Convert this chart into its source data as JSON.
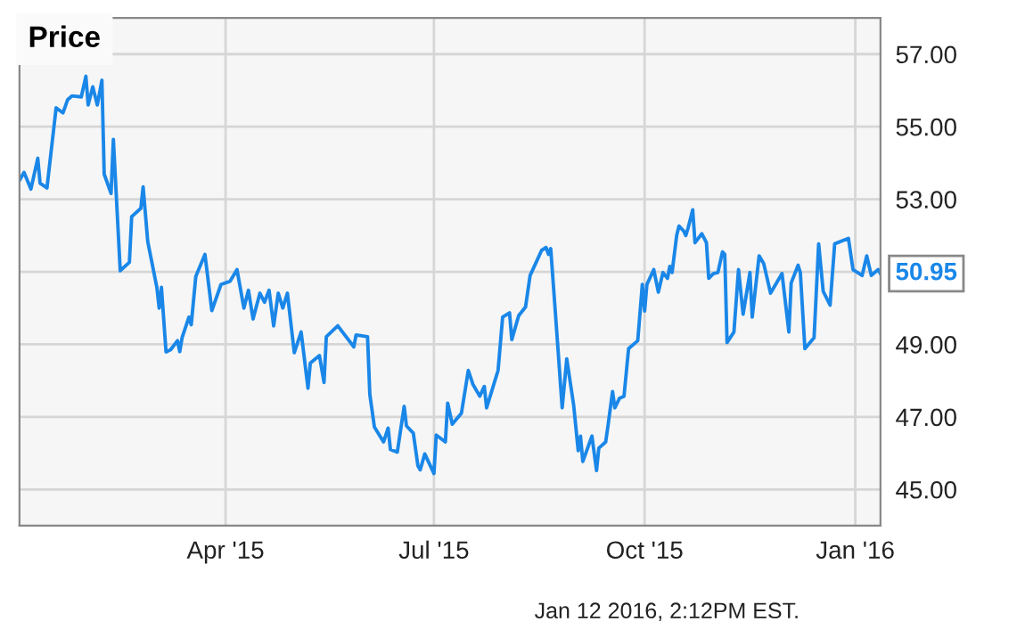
{
  "chart_data": {
    "type": "line",
    "title": "Price",
    "x": [
      "2015-01-01",
      "2015-01-03",
      "2015-01-06",
      "2015-01-09",
      "2015-01-10",
      "2015-01-13",
      "2015-01-17",
      "2015-01-20",
      "2015-01-22",
      "2015-01-24",
      "2015-01-28",
      "2015-01-30",
      "2015-01-31",
      "2015-02-02",
      "2015-02-04",
      "2015-02-06",
      "2015-02-07",
      "2015-02-10",
      "2015-02-11",
      "2015-02-14",
      "2015-02-18",
      "2015-02-19",
      "2015-02-23",
      "2015-02-24",
      "2015-02-26",
      "2015-03-02",
      "2015-03-03",
      "2015-03-04",
      "2015-03-06",
      "2015-03-08",
      "2015-03-11",
      "2015-03-12",
      "2015-03-13",
      "2015-03-16",
      "2015-03-17",
      "2015-03-19",
      "2015-03-23",
      "2015-03-26",
      "2015-03-30",
      "2015-04-03",
      "2015-04-06",
      "2015-04-09",
      "2015-04-11",
      "2015-04-13",
      "2015-04-16",
      "2015-04-18",
      "2015-04-20",
      "2015-04-22",
      "2015-04-24",
      "2015-04-26",
      "2015-04-28",
      "2015-05-01",
      "2015-05-04",
      "2015-05-07",
      "2015-05-08",
      "2015-05-12",
      "2015-05-14",
      "2015-05-15",
      "2015-05-20",
      "2015-05-27",
      "2015-05-28",
      "2015-06-02",
      "2015-06-03",
      "2015-06-05",
      "2015-06-09",
      "2015-06-11",
      "2015-06-12",
      "2015-06-15",
      "2015-06-18",
      "2015-06-19",
      "2015-06-22",
      "2015-06-24",
      "2015-06-25",
      "2015-06-27",
      "2015-07-01",
      "2015-07-02",
      "2015-07-06",
      "2015-07-07",
      "2015-07-09",
      "2015-07-13",
      "2015-07-16",
      "2015-07-18",
      "2015-07-21",
      "2015-07-23",
      "2015-07-24",
      "2015-07-29",
      "2015-07-31",
      "2015-08-03",
      "2015-08-04",
      "2015-08-07",
      "2015-08-10",
      "2015-08-12",
      "2015-08-15",
      "2015-08-17",
      "2015-08-19",
      "2015-08-20",
      "2015-08-21",
      "2015-08-24",
      "2015-08-26",
      "2015-08-28",
      "2015-08-31",
      "2015-09-02",
      "2015-09-03",
      "2015-09-04",
      "2015-09-08",
      "2015-09-10",
      "2015-09-11",
      "2015-09-14",
      "2015-09-15",
      "2015-09-17",
      "2015-09-18",
      "2015-09-20",
      "2015-09-22",
      "2015-09-24",
      "2015-09-28",
      "2015-09-30",
      "2015-10-01",
      "2015-10-02",
      "2015-10-05",
      "2015-10-07",
      "2015-10-09",
      "2015-10-11",
      "2015-10-12",
      "2015-10-13",
      "2015-10-15",
      "2015-10-16",
      "2015-10-18",
      "2015-10-19",
      "2015-10-20",
      "2015-10-22",
      "2015-10-23",
      "2015-10-26",
      "2015-10-28",
      "2015-10-29",
      "2015-10-31",
      "2015-11-02",
      "2015-11-04",
      "2015-11-05",
      "2015-11-06",
      "2015-11-09",
      "2015-11-11",
      "2015-11-13",
      "2015-11-16",
      "2015-11-17",
      "2015-11-20",
      "2015-11-22",
      "2015-11-25",
      "2015-11-30",
      "2015-12-03",
      "2015-12-04",
      "2015-12-07",
      "2015-12-08",
      "2015-12-10",
      "2015-12-14",
      "2015-12-16",
      "2015-12-18",
      "2015-12-21",
      "2015-12-23",
      "2015-12-29",
      "2015-12-31",
      "2016-01-04",
      "2016-01-06",
      "2016-01-08",
      "2016-01-11",
      "2016-01-12"
    ],
    "series": [
      {
        "color": "#1a87e8",
        "values": [
          53.52,
          53.74,
          53.28,
          54.13,
          53.44,
          53.31,
          55.52,
          55.38,
          55.74,
          55.85,
          55.82,
          56.39,
          55.6,
          56.1,
          55.6,
          56.28,
          53.69,
          53.16,
          54.65,
          51.03,
          51.26,
          52.52,
          52.75,
          53.34,
          51.84,
          50.57,
          50.0,
          50.57,
          48.79,
          48.85,
          49.1,
          48.8,
          49.18,
          49.75,
          49.54,
          50.87,
          51.48,
          49.93,
          50.65,
          50.74,
          51.06,
          50.0,
          50.49,
          49.7,
          50.41,
          50.16,
          50.49,
          49.51,
          50.41,
          50.0,
          50.41,
          48.77,
          49.34,
          47.79,
          48.48,
          48.69,
          47.95,
          49.21,
          49.51,
          48.93,
          49.26,
          49.21,
          47.62,
          46.72,
          46.31,
          46.69,
          46.1,
          46.03,
          47.29,
          46.75,
          46.55,
          45.65,
          45.54,
          45.98,
          45.44,
          46.5,
          46.31,
          47.38,
          46.8,
          47.1,
          48.28,
          47.9,
          47.57,
          47.84,
          47.25,
          48.28,
          49.75,
          49.87,
          49.13,
          49.79,
          50.03,
          50.9,
          51.31,
          51.59,
          51.67,
          51.48,
          51.64,
          49.02,
          47.25,
          48.6,
          47.33,
          46.07,
          46.47,
          45.77,
          46.47,
          45.52,
          46.14,
          46.31,
          46.75,
          47.7,
          47.25,
          47.51,
          47.57,
          48.88,
          49.1,
          50.65,
          49.92,
          50.65,
          51.06,
          50.44,
          50.98,
          50.82,
          51.15,
          50.98,
          52.0,
          52.26,
          52.13,
          52.0,
          52.21,
          52.71,
          51.8,
          52.05,
          51.8,
          50.82,
          50.95,
          50.98,
          51.55,
          51.48,
          49.05,
          49.34,
          51.06,
          49.83,
          50.98,
          49.75,
          51.44,
          51.23,
          50.41,
          50.95,
          49.34,
          50.69,
          51.18,
          50.98,
          48.88,
          49.18,
          51.77,
          50.46,
          50.08,
          51.77,
          51.92,
          51.06,
          50.9,
          51.44,
          50.9,
          51.06,
          50.95
        ]
      }
    ],
    "xlim": [
      "2015-01-01",
      "2016-01-12"
    ],
    "xticks": [
      {
        "value": "2015-04-01",
        "label": "Apr '15"
      },
      {
        "value": "2015-07-01",
        "label": "Jul '15"
      },
      {
        "value": "2015-10-01",
        "label": "Oct '15"
      },
      {
        "value": "2016-01-01",
        "label": "Jan '16"
      }
    ],
    "ylim": [
      44,
      58
    ],
    "yticks": [
      {
        "value": 45,
        "label": "45.00"
      },
      {
        "value": 47,
        "label": "47.00"
      },
      {
        "value": 49,
        "label": "49.00"
      },
      {
        "value": 51,
        "label": null
      },
      {
        "value": 53,
        "label": "53.00"
      },
      {
        "value": 55,
        "label": "55.00"
      },
      {
        "value": 57,
        "label": "57.00"
      }
    ],
    "grid": true,
    "marker": "none",
    "line_style": "solid",
    "annotations": [
      {
        "text": "50.95",
        "x": "2016-01-12",
        "y": 50.95
      },
      "Jan 12 2016, 2:12PM EST."
    ]
  }
}
